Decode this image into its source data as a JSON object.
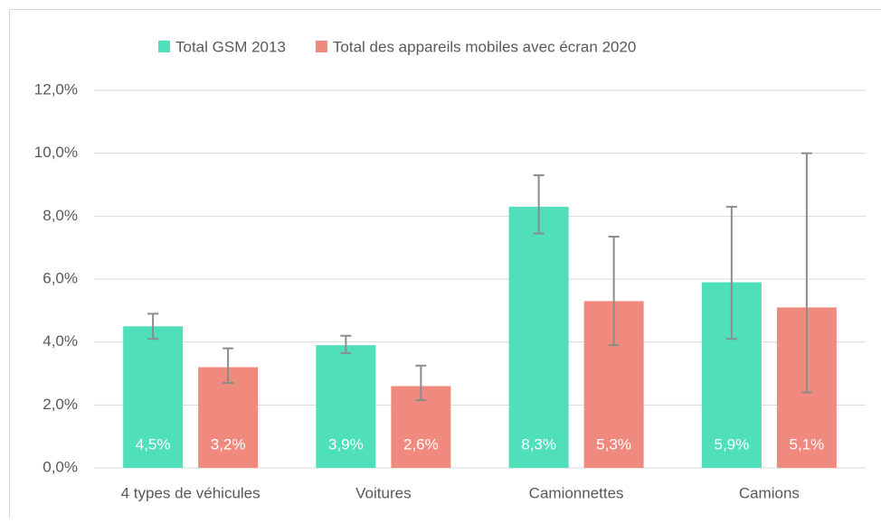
{
  "chart_data": {
    "type": "bar",
    "categories": [
      "4 types de véhicules",
      "Voitures",
      "Camionnettes",
      "Camions"
    ],
    "series": [
      {
        "name": "Total GSM 2013",
        "color": "#4fdfba",
        "values": [
          4.5,
          3.9,
          8.3,
          5.9
        ],
        "value_labels": [
          "4,5%",
          "3,9%",
          "8,3%",
          "5,9%"
        ],
        "error_minus": [
          0.4,
          0.25,
          0.85,
          1.8
        ],
        "error_plus": [
          0.4,
          0.3,
          1.0,
          2.4
        ]
      },
      {
        "name": "Total des appareils mobiles avec écran 2020",
        "color": "#f08a7e",
        "values": [
          3.2,
          2.6,
          5.3,
          5.1
        ],
        "value_labels": [
          "3,2%",
          "2,6%",
          "5,3%",
          "5,1%"
        ],
        "error_minus": [
          0.5,
          0.45,
          1.4,
          2.7
        ],
        "error_plus": [
          0.6,
          0.65,
          2.05,
          4.9
        ]
      }
    ],
    "ylim": [
      0,
      12
    ],
    "yticks": [
      {
        "value": 0,
        "label": "0,0%"
      },
      {
        "value": 2,
        "label": "2,0%"
      },
      {
        "value": 4,
        "label": "4,0%"
      },
      {
        "value": 6,
        "label": "6,0%"
      },
      {
        "value": 8,
        "label": "8,0%"
      },
      {
        "value": 10,
        "label": "10,0%"
      },
      {
        "value": 12,
        "label": "12,0%"
      }
    ],
    "grid": true,
    "legend": "top",
    "error_color": "#8c8c8c"
  }
}
